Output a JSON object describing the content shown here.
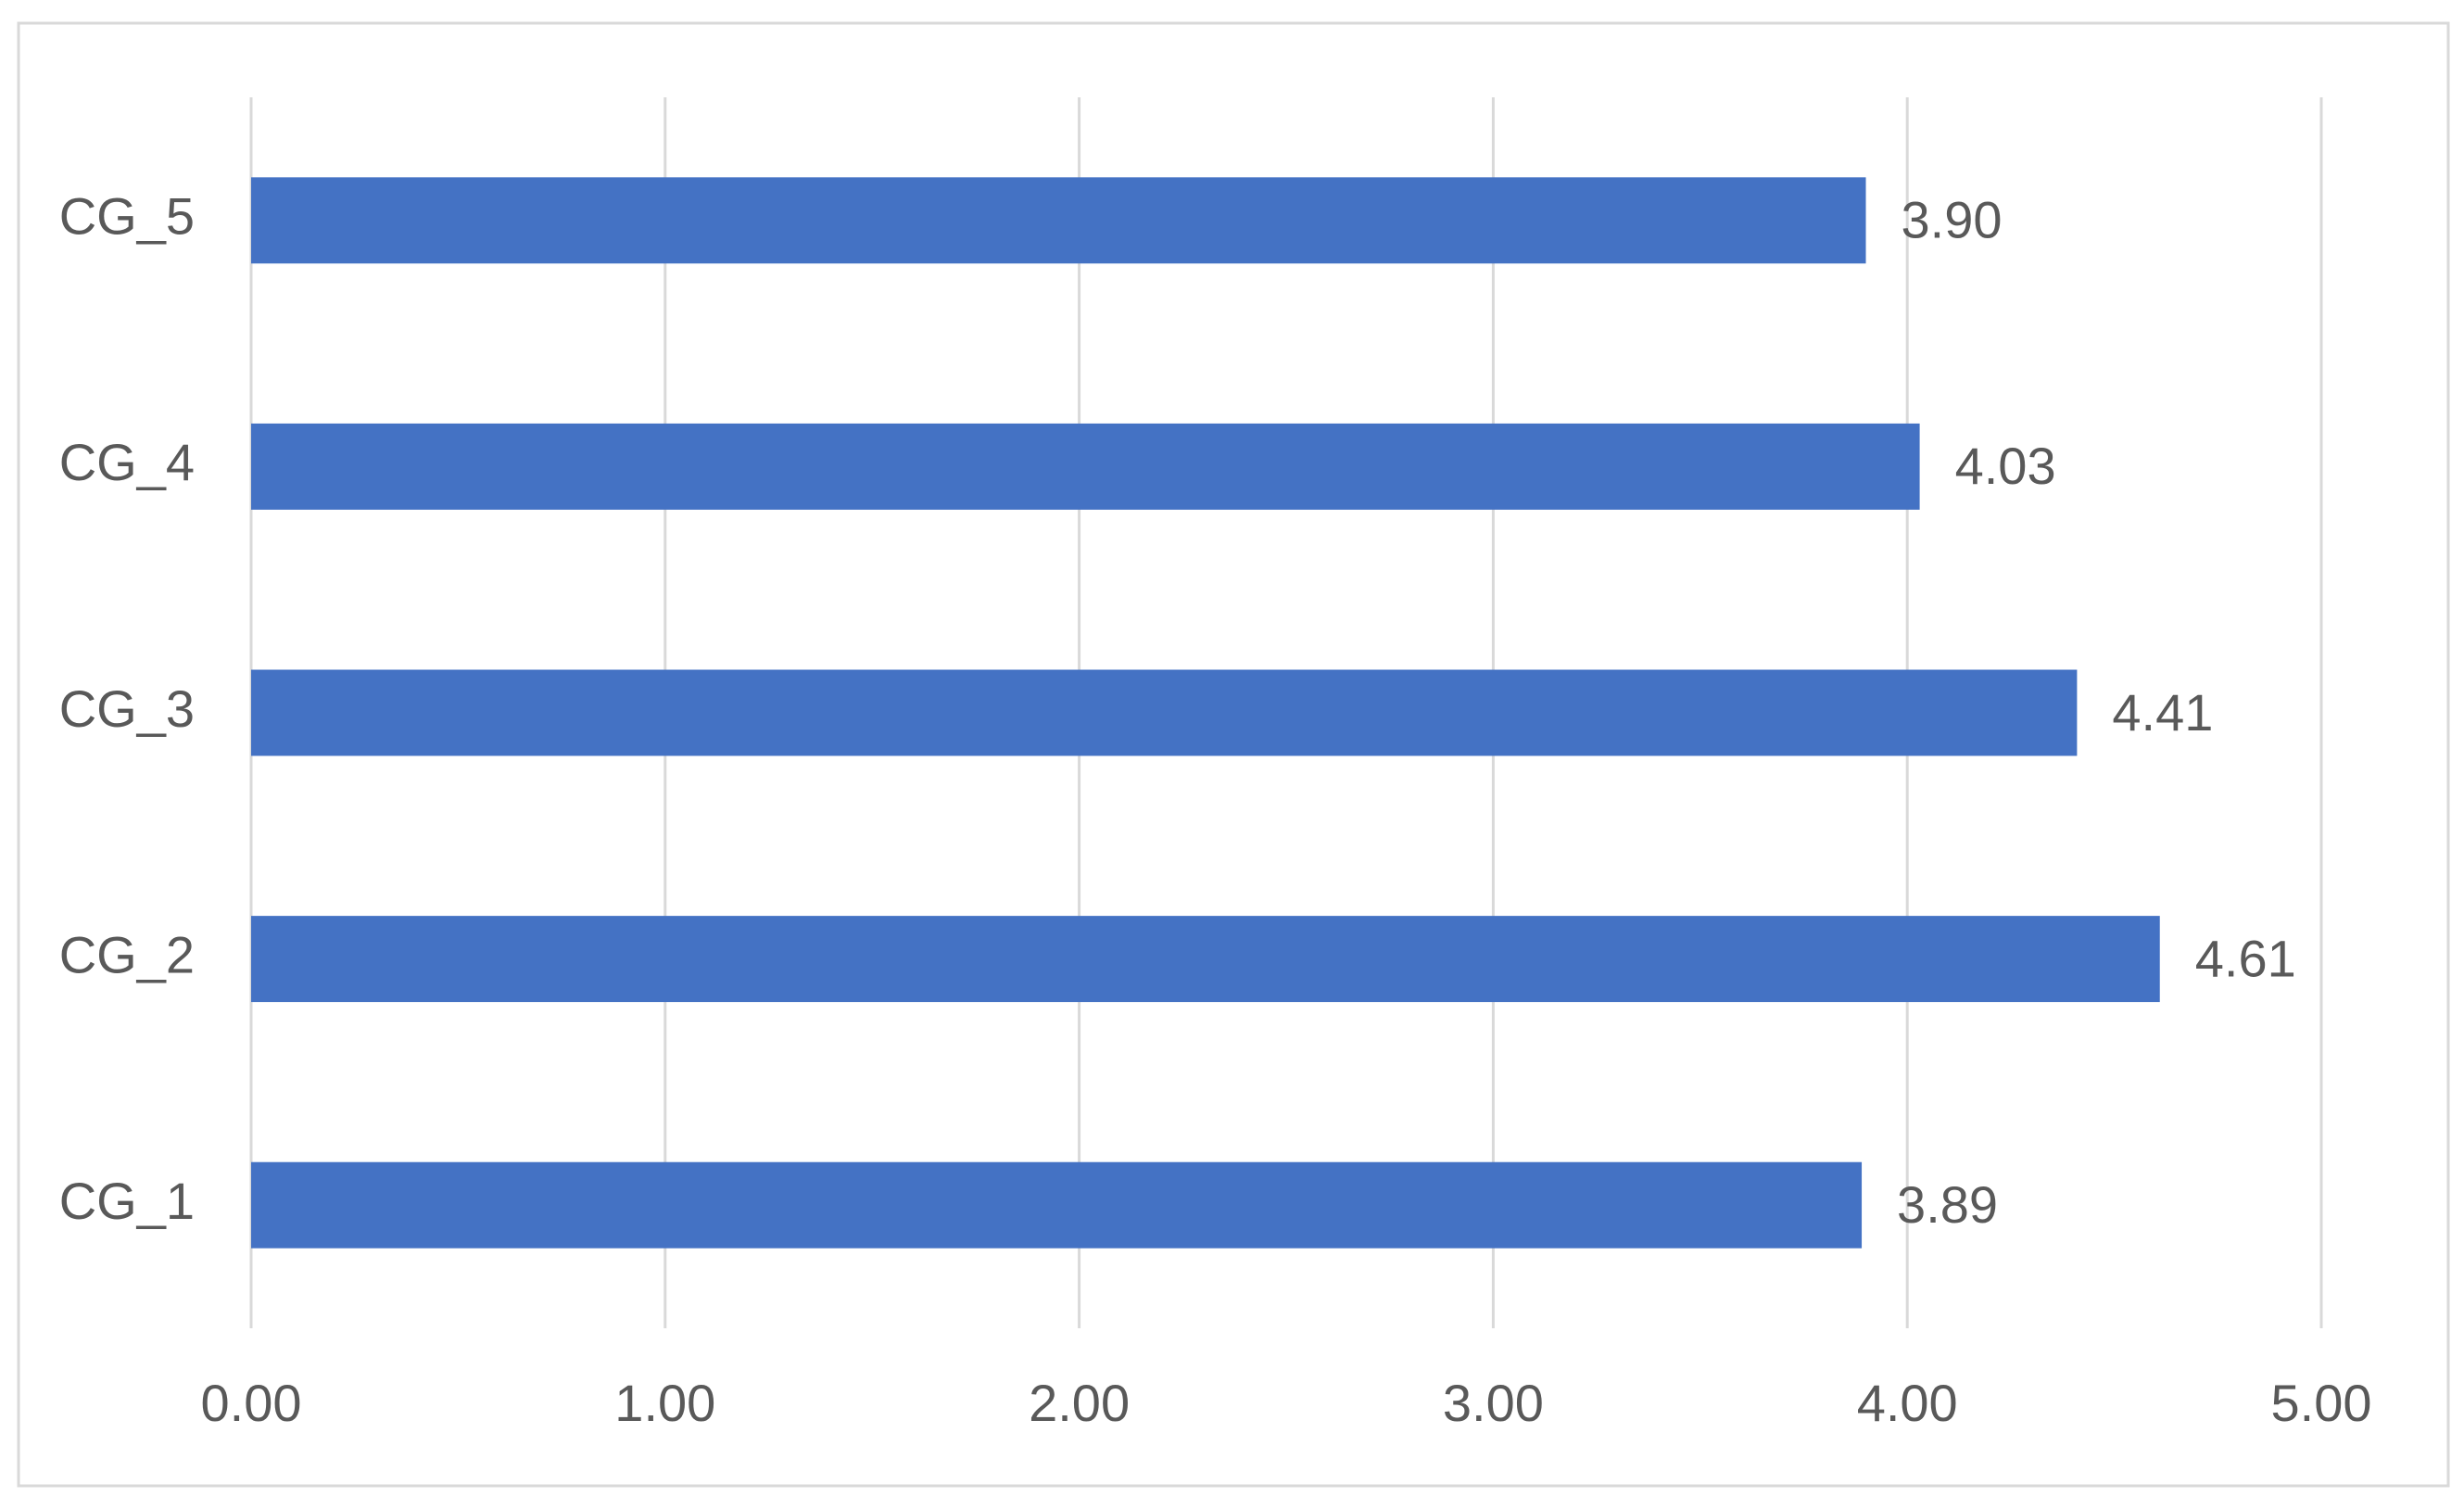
{
  "chart_data": {
    "type": "bar",
    "orientation": "horizontal",
    "categories": [
      "CG_1",
      "CG_2",
      "CG_3",
      "CG_4",
      "CG_5"
    ],
    "values": [
      3.89,
      4.61,
      4.41,
      4.03,
      3.9
    ],
    "value_labels": [
      "3.89",
      "4.61",
      "4.41",
      "4.03",
      "3.90"
    ],
    "color": "#4472c4",
    "xlim": [
      0,
      5
    ],
    "xticks": [
      {
        "value": 0,
        "label": "0.00"
      },
      {
        "value": 1,
        "label": "1.00"
      },
      {
        "value": 2,
        "label": "2.00"
      },
      {
        "value": 3,
        "label": "3.00"
      },
      {
        "value": 4,
        "label": "4.00"
      },
      {
        "value": 5,
        "label": "5.00"
      }
    ],
    "grid": true
  }
}
